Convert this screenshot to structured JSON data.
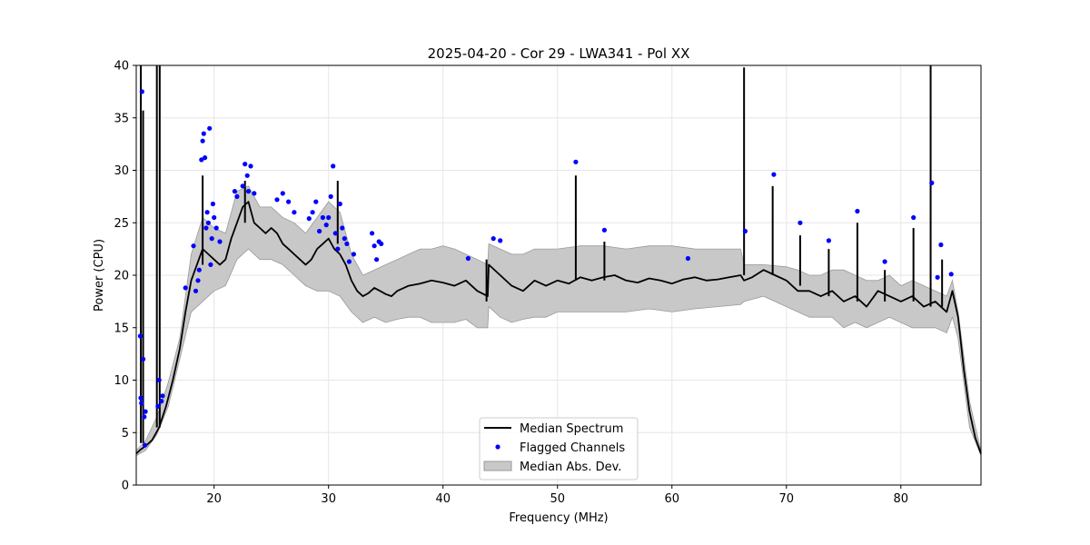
{
  "chart_data": {
    "type": "line",
    "title": "2025-04-20 - Cor 29 - LWA341 - Pol XX",
    "xlabel": "Frequency (MHz)",
    "ylabel": "Power (CPU)",
    "xlim": [
      13.2,
      87.0
    ],
    "ylim": [
      0,
      40
    ],
    "xticks": [
      20,
      30,
      40,
      50,
      60,
      70,
      80
    ],
    "yticks": [
      0,
      5,
      10,
      15,
      20,
      25,
      30,
      35,
      40
    ],
    "grid": true,
    "legend_position": "bottom-center",
    "colors": {
      "median": "#000000",
      "flagged": "#0000ff",
      "mad": "#c8c8c8",
      "mad_edge": "#9a9a9a",
      "grid": "#e6e6e6"
    },
    "legend": [
      "Median Spectrum",
      "Flagged Channels",
      "Median Abs. Dev."
    ],
    "series": [
      {
        "name": "Median Spectrum",
        "x": [
          13.2,
          13.6,
          14.0,
          14.6,
          15.2,
          15.8,
          16.4,
          17.0,
          17.5,
          18.0,
          18.5,
          19.0,
          19.5,
          20.0,
          20.5,
          21.0,
          21.5,
          22.0,
          22.5,
          23.0,
          23.5,
          24.0,
          24.5,
          25.0,
          25.5,
          26.0,
          26.5,
          27.0,
          27.5,
          28.0,
          28.5,
          29.0,
          29.5,
          30.0,
          30.5,
          31.0,
          31.5,
          32.0,
          32.5,
          33.0,
          33.5,
          34.0,
          34.5,
          35.0,
          35.5,
          36.0,
          37.0,
          38.0,
          39.0,
          40.0,
          41.0,
          42.0,
          43.0,
          43.9,
          44.0,
          45.0,
          46.0,
          47.0,
          48.0,
          49.0,
          50.0,
          51.0,
          52.0,
          53.0,
          54.0,
          55.0,
          56.0,
          57.0,
          58.0,
          59.0,
          60.0,
          61.0,
          62.0,
          63.0,
          64.0,
          65.0,
          66.0,
          66.3,
          67.0,
          68.0,
          69.0,
          70.0,
          71.0,
          72.0,
          73.0,
          74.0,
          75.0,
          76.0,
          77.0,
          78.0,
          79.0,
          80.0,
          81.0,
          82.0,
          83.0,
          84.0,
          84.5,
          85.0,
          85.5,
          86.0,
          86.5,
          87.0
        ],
        "y": [
          3.0,
          3.4,
          3.7,
          4.3,
          5.5,
          7.5,
          10.0,
          13.0,
          16.5,
          19.5,
          21.0,
          22.5,
          22.0,
          21.5,
          21.0,
          21.5,
          23.5,
          25.0,
          26.5,
          27.0,
          25.0,
          24.5,
          24.0,
          24.5,
          24.0,
          23.0,
          22.5,
          22.0,
          21.5,
          21.0,
          21.5,
          22.5,
          23.0,
          23.5,
          22.5,
          22.0,
          21.0,
          19.5,
          18.5,
          18.0,
          18.3,
          18.8,
          18.5,
          18.2,
          18.0,
          18.5,
          19.0,
          19.2,
          19.5,
          19.3,
          19.0,
          19.5,
          18.5,
          18.0,
          21.0,
          20.0,
          19.0,
          18.5,
          19.5,
          19.0,
          19.5,
          19.2,
          19.8,
          19.5,
          19.8,
          20.0,
          19.5,
          19.3,
          19.7,
          19.5,
          19.2,
          19.6,
          19.8,
          19.5,
          19.6,
          19.8,
          20.0,
          19.5,
          19.8,
          20.5,
          20.0,
          19.5,
          18.5,
          18.5,
          18.0,
          18.5,
          17.5,
          18.0,
          17.0,
          18.5,
          18.0,
          17.5,
          18.0,
          17.0,
          17.5,
          16.5,
          18.5,
          16.0,
          11.0,
          7.0,
          4.5,
          3.0
        ]
      },
      {
        "name": "Median Abs. Dev.",
        "x": [
          13.2,
          14.0,
          15.0,
          16.0,
          17.0,
          18.0,
          19.0,
          20.0,
          21.0,
          22.0,
          23.0,
          24.0,
          25.0,
          26.0,
          27.0,
          28.0,
          29.0,
          30.0,
          31.0,
          32.0,
          33.0,
          34.0,
          35.0,
          36.0,
          37.0,
          38.0,
          39.0,
          40.0,
          41.0,
          42.0,
          43.0,
          43.9,
          44.0,
          45.0,
          46.0,
          47.0,
          48.0,
          49.0,
          50.0,
          52.0,
          54.0,
          56.0,
          58.0,
          60.0,
          62.0,
          64.0,
          66.0,
          66.3,
          68.0,
          70.0,
          71.0,
          72.0,
          73.0,
          74.0,
          75.0,
          76.0,
          77.0,
          78.0,
          79.0,
          80.0,
          81.0,
          82.0,
          83.0,
          84.0,
          84.5,
          85.0,
          86.0,
          87.0
        ],
        "upper": [
          3.3,
          4.2,
          6.5,
          9.8,
          14.0,
          22.0,
          25.5,
          24.5,
          24.0,
          28.0,
          28.5,
          26.5,
          26.5,
          25.5,
          25.0,
          24.0,
          25.5,
          27.0,
          26.0,
          22.0,
          20.0,
          20.5,
          21.0,
          21.5,
          22.0,
          22.5,
          22.5,
          22.8,
          22.5,
          22.0,
          21.5,
          21.0,
          23.0,
          22.5,
          22.0,
          22.0,
          22.5,
          22.5,
          22.5,
          22.8,
          22.8,
          22.5,
          22.8,
          22.8,
          22.5,
          22.5,
          22.5,
          21.0,
          21.0,
          20.8,
          20.5,
          20.0,
          20.0,
          20.5,
          20.5,
          20.0,
          19.5,
          19.5,
          20.0,
          19.0,
          19.5,
          19.0,
          18.5,
          18.0,
          19.5,
          16.5,
          8.0,
          3.2
        ],
        "lower": [
          2.8,
          3.3,
          4.8,
          7.5,
          12.0,
          16.5,
          17.5,
          18.5,
          19.0,
          21.5,
          22.5,
          21.5,
          21.5,
          21.0,
          20.0,
          19.0,
          18.5,
          18.5,
          18.0,
          16.5,
          15.5,
          16.0,
          15.5,
          15.8,
          16.0,
          16.0,
          15.5,
          15.5,
          15.5,
          15.8,
          15.0,
          15.0,
          17.0,
          16.0,
          15.5,
          15.8,
          16.0,
          16.0,
          16.5,
          16.5,
          16.5,
          16.5,
          16.8,
          16.5,
          16.8,
          17.0,
          17.2,
          17.5,
          18.0,
          17.0,
          16.5,
          16.0,
          16.0,
          16.0,
          15.0,
          15.5,
          15.0,
          15.5,
          16.0,
          15.5,
          15.0,
          15.0,
          15.0,
          14.5,
          16.0,
          14.0,
          5.5,
          2.8
        ]
      }
    ],
    "spikes": [
      {
        "x": 13.6,
        "from": 4.0,
        "to": 40.0
      },
      {
        "x": 13.8,
        "from": 4.0,
        "to": 35.7
      },
      {
        "x": 15.0,
        "from": 5.5,
        "to": 40.0
      },
      {
        "x": 15.25,
        "from": 5.5,
        "to": 40.0
      },
      {
        "x": 19.0,
        "from": 21.0,
        "to": 29.5
      },
      {
        "x": 22.7,
        "from": 25.0,
        "to": 29.0
      },
      {
        "x": 30.8,
        "from": 23.0,
        "to": 29.0
      },
      {
        "x": 43.8,
        "from": 17.5,
        "to": 21.5
      },
      {
        "x": 51.6,
        "from": 19.5,
        "to": 29.5
      },
      {
        "x": 54.1,
        "from": 19.5,
        "to": 23.2
      },
      {
        "x": 66.3,
        "from": 20.0,
        "to": 39.8
      },
      {
        "x": 68.8,
        "from": 20.0,
        "to": 28.5
      },
      {
        "x": 71.2,
        "from": 19.0,
        "to": 23.8
      },
      {
        "x": 73.7,
        "from": 18.0,
        "to": 22.5
      },
      {
        "x": 76.2,
        "from": 17.5,
        "to": 25.0
      },
      {
        "x": 78.6,
        "from": 17.5,
        "to": 20.5
      },
      {
        "x": 81.1,
        "from": 17.5,
        "to": 24.5
      },
      {
        "x": 82.6,
        "from": 17.0,
        "to": 40.0
      },
      {
        "x": 83.6,
        "from": 17.0,
        "to": 21.5
      }
    ],
    "flagged_points": {
      "x": [
        13.7,
        13.8,
        13.55,
        13.6,
        13.65,
        13.9,
        13.95,
        14.0,
        15.2,
        15.4,
        15.5,
        15.1,
        17.5,
        18.2,
        18.4,
        18.6,
        18.7,
        18.9,
        19.0,
        19.1,
        19.2,
        19.3,
        19.4,
        19.5,
        19.6,
        19.7,
        19.8,
        19.9,
        20.0,
        20.2,
        20.5,
        21.8,
        22.0,
        22.5,
        22.7,
        22.9,
        23.0,
        23.2,
        23.5,
        25.5,
        26.0,
        26.5,
        27.0,
        28.3,
        28.6,
        28.9,
        29.2,
        29.5,
        29.8,
        30.0,
        30.2,
        30.4,
        30.6,
        30.8,
        31.0,
        31.2,
        31.4,
        31.6,
        31.8,
        32.2,
        33.8,
        34.0,
        34.2,
        34.4,
        34.6,
        42.2,
        44.4,
        45.0,
        51.6,
        54.1,
        61.4,
        66.4,
        68.9,
        71.2,
        73.7,
        76.2,
        78.6,
        81.1,
        82.7,
        83.2,
        83.5,
        84.4
      ],
      "y": [
        37.5,
        12.0,
        14.2,
        8.3,
        7.8,
        6.5,
        3.8,
        7.0,
        10.0,
        8.0,
        8.5,
        7.5,
        18.8,
        22.8,
        18.5,
        19.5,
        20.5,
        31.0,
        32.8,
        33.5,
        31.2,
        24.5,
        26.0,
        25.0,
        34.0,
        21.0,
        23.5,
        26.8,
        25.5,
        24.5,
        23.2,
        28.0,
        27.5,
        28.5,
        30.6,
        29.5,
        28.0,
        30.4,
        27.8,
        27.2,
        27.8,
        27.0,
        26.0,
        25.4,
        26.0,
        27.0,
        24.2,
        25.5,
        24.8,
        25.5,
        27.5,
        30.4,
        24.0,
        22.5,
        26.8,
        24.5,
        23.5,
        23.0,
        21.3,
        22.0,
        24.0,
        22.8,
        21.5,
        23.2,
        23.0,
        21.6,
        23.5,
        23.3,
        30.8,
        24.3,
        21.6,
        24.2,
        29.6,
        25.0,
        23.3,
        26.1,
        21.3,
        25.5,
        28.8,
        19.8,
        22.9,
        20.1
      ]
    }
  }
}
